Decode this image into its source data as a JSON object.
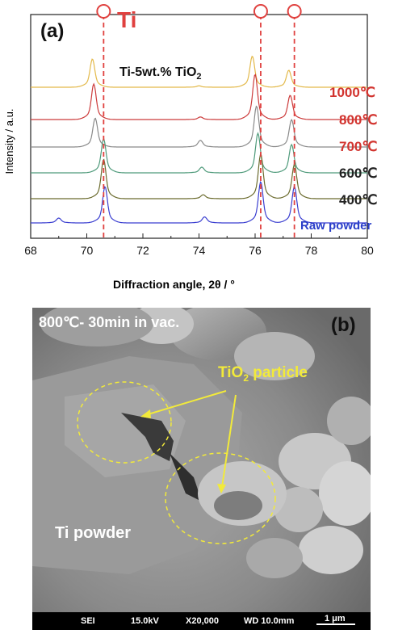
{
  "panel_a": {
    "label": "(a)",
    "phase_label": "Ti",
    "sample_label_main": "Ti-5wt.% TiO",
    "sample_label_sub": "2",
    "ylabel": "Intensity / a.u.",
    "xlabel": "Diffraction angle, 2θ / °",
    "temperatures": [
      {
        "label": "1000℃",
        "color": "#d2342f"
      },
      {
        "label": "800℃",
        "color": "#d2342f"
      },
      {
        "label": "700℃",
        "color": "#d2342f"
      },
      {
        "label": "600℃",
        "color": "#222222"
      },
      {
        "label": "400℃",
        "color": "#222222"
      },
      {
        "label": "Raw powder",
        "color": "#2a3ec9"
      }
    ],
    "ti_reference_color": "#e0413f"
  },
  "chart_data": {
    "type": "line",
    "xlabel": "Diffraction angle, 2θ / °",
    "ylabel": "Intensity / a.u.",
    "xlim": [
      68,
      80
    ],
    "xticks": [
      "68",
      "70",
      "72",
      "74",
      "76",
      "78",
      "80"
    ],
    "ti_peak_positions": [
      70.6,
      76.2,
      77.4
    ],
    "series": [
      {
        "name": "1000℃",
        "color": "#e3b94a",
        "peaks": [
          [
            70.2,
            1.0
          ],
          [
            75.9,
            1.1
          ],
          [
            77.2,
            0.6
          ],
          [
            74.0,
            0.05
          ]
        ]
      },
      {
        "name": "800℃",
        "color": "#cc3b3b",
        "peaks": [
          [
            70.25,
            1.1
          ],
          [
            76.0,
            1.4
          ],
          [
            77.25,
            0.75
          ],
          [
            74.05,
            0.08
          ]
        ]
      },
      {
        "name": "700℃",
        "color": "#8a8a8a",
        "peaks": [
          [
            70.3,
            0.95
          ],
          [
            76.05,
            1.35
          ],
          [
            77.3,
            0.9
          ],
          [
            74.05,
            0.22
          ]
        ]
      },
      {
        "name": "600℃",
        "color": "#4e9a7a",
        "peaks": [
          [
            70.6,
            1.2
          ],
          [
            76.1,
            1.4
          ],
          [
            77.3,
            1.0
          ],
          [
            74.1,
            0.2
          ]
        ]
      },
      {
        "name": "400℃",
        "color": "#6b6b2e",
        "peaks": [
          [
            70.6,
            1.5
          ],
          [
            76.2,
            1.7
          ],
          [
            77.4,
            1.3
          ],
          [
            74.15,
            0.15
          ]
        ]
      },
      {
        "name": "Raw powder",
        "color": "#3a3ed0",
        "peaks": [
          [
            69.0,
            0.2
          ],
          [
            70.65,
            1.5
          ],
          [
            74.2,
            0.25
          ],
          [
            76.2,
            1.7
          ],
          [
            77.4,
            1.5
          ]
        ]
      }
    ]
  },
  "panel_b": {
    "label": "(b)",
    "condition": "800℃- 30min in vac.",
    "particle_label_main": "TiO",
    "particle_label_sub": "2",
    "particle_label_tail": " particle",
    "powder_label": "Ti powder",
    "scalebar": {
      "mode": "SEI",
      "voltage": "15.0kV",
      "magnification": "X20,000",
      "wd": "WD 10.0mm",
      "scale": "1 μm"
    }
  }
}
